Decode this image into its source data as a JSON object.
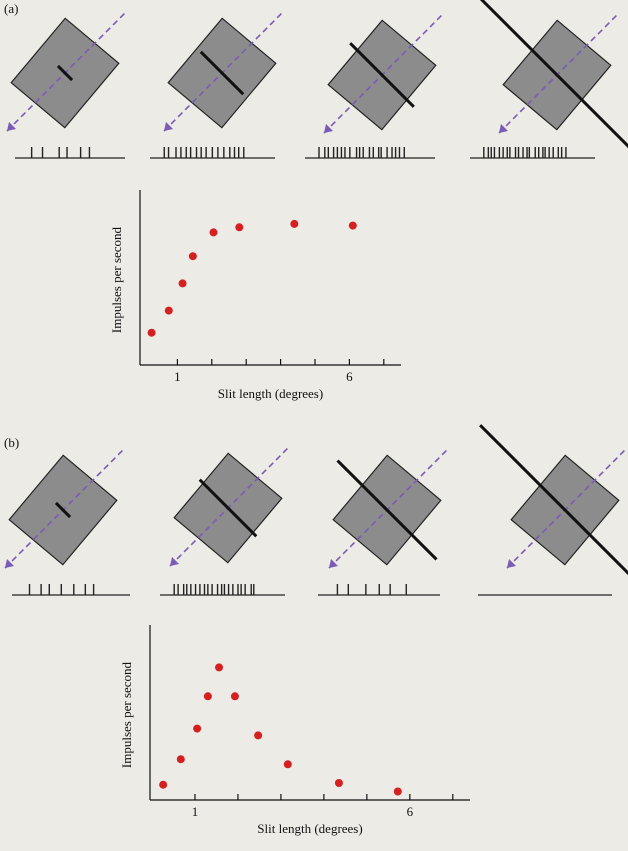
{
  "panel_labels": [
    "(a)",
    "(b)"
  ],
  "chart_data": [
    {
      "type": "scatter",
      "xlabel": "Slit length (degrees)",
      "ylabel": "Impulses per second",
      "x": [
        0.25,
        0.75,
        1.15,
        1.45,
        2.05,
        2.8,
        4.4,
        6.1
      ],
      "values": [
        19,
        32,
        48,
        64,
        78,
        81,
        83,
        82
      ],
      "color": "#d42020",
      "xlim": [
        0,
        7.5
      ],
      "ylim": [
        0,
        100
      ],
      "xticks": [
        1,
        6
      ],
      "xminorticks": [
        2,
        3,
        4,
        5,
        7
      ]
    },
    {
      "type": "scatter",
      "xlabel": "Slit length (degrees)",
      "ylabel": "Impulses per second",
      "x": [
        0.26,
        0.67,
        1.05,
        1.3,
        1.56,
        1.93,
        2.47,
        3.16,
        4.35,
        5.72
      ],
      "values": [
        9,
        24,
        42,
        61,
        78,
        61,
        38,
        21,
        10,
        5
      ],
      "color": "#d42020",
      "xlim": [
        0,
        7.4
      ],
      "ylim": [
        0,
        100
      ],
      "xticks": [
        1,
        6
      ],
      "xminorticks": [
        2,
        3,
        4,
        5,
        7
      ]
    }
  ]
}
